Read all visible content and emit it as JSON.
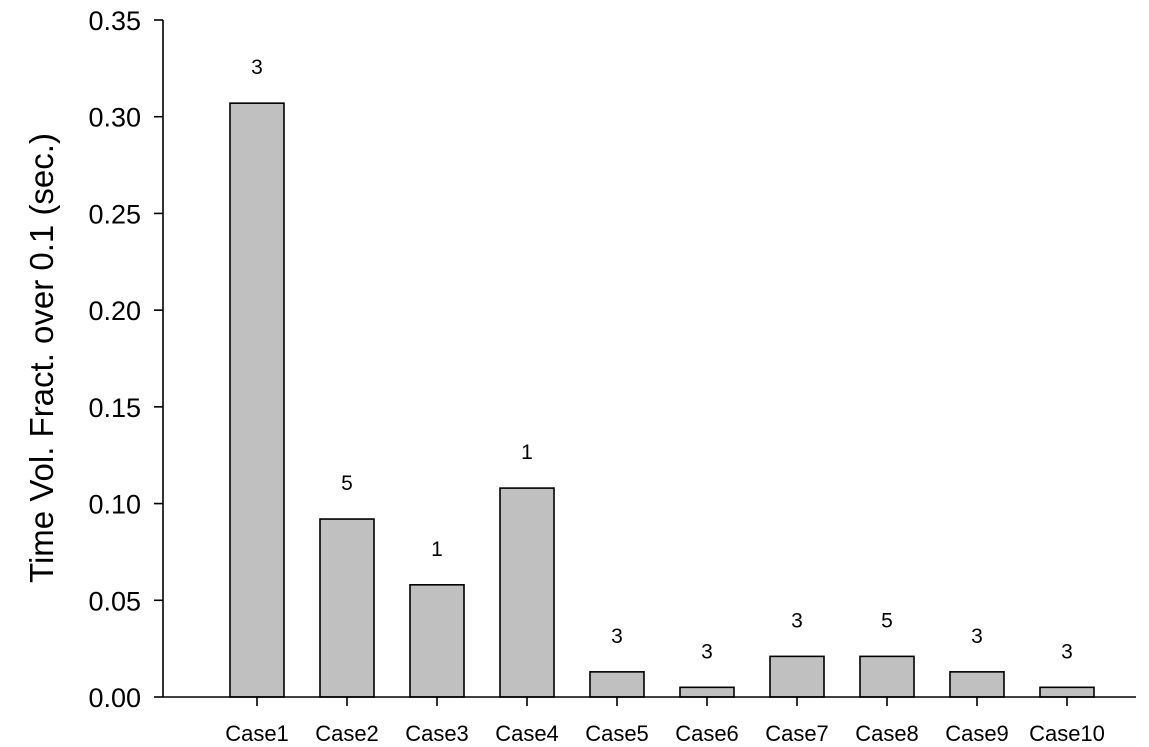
{
  "chart_data": {
    "type": "bar",
    "title": "",
    "xlabel": "",
    "ylabel": "Time Vol. Fract. over 0.1 (sec.)",
    "categories": [
      "Case1",
      "Case2",
      "Case3",
      "Case4",
      "Case5",
      "Case6",
      "Case7",
      "Case8",
      "Case9",
      "Case10"
    ],
    "values": [
      0.307,
      0.092,
      0.058,
      0.108,
      0.013,
      0.005,
      0.021,
      0.021,
      0.013,
      0.005
    ],
    "data_labels": [
      "3",
      "5",
      "1",
      "1",
      "3",
      "3",
      "3",
      "5",
      "3",
      "3"
    ],
    "ylim": [
      0,
      0.35
    ],
    "yticks": [
      "0.00",
      "0.05",
      "0.10",
      "0.15",
      "0.20",
      "0.25",
      "0.30",
      "0.35"
    ],
    "grid": false,
    "bar_color": "#c0c0c0"
  }
}
